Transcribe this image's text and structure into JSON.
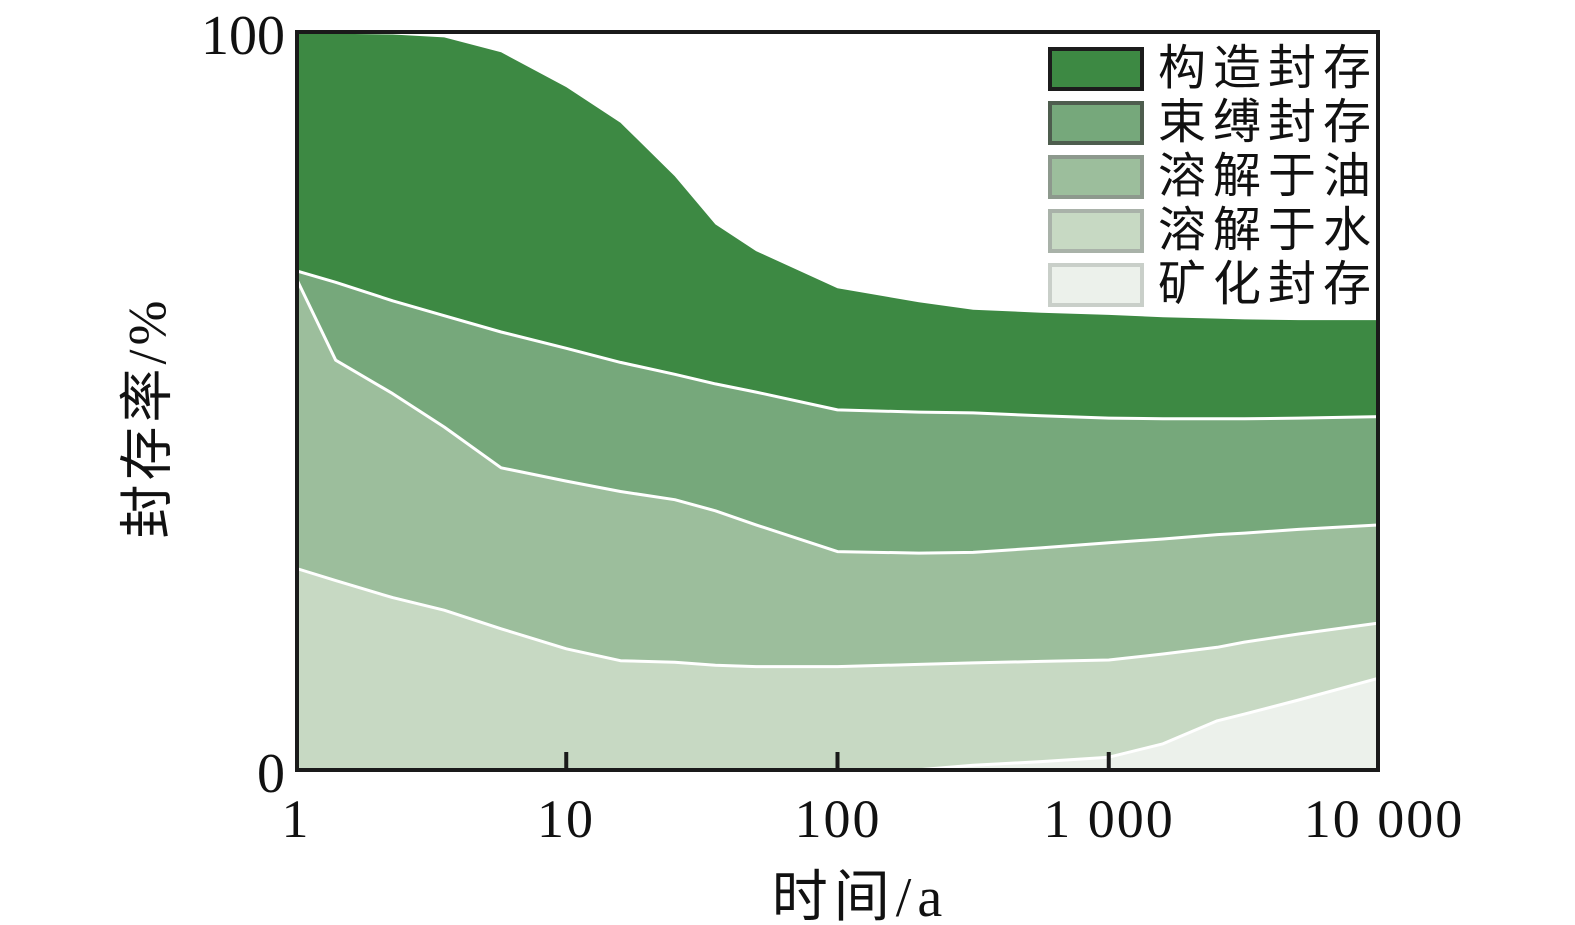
{
  "chart_data": {
    "type": "area",
    "variant": "stacked-area",
    "title": "",
    "x_axis": {
      "label": "时间/a",
      "scale": "log10",
      "range": [
        1,
        10000
      ],
      "ticks": [
        1,
        10,
        100,
        1000,
        10000
      ],
      "tick_labels": [
        "1",
        "10",
        "100",
        "1 000",
        "10 000"
      ]
    },
    "y_axis": {
      "label": "封存率/%",
      "range": [
        0,
        100
      ],
      "ticks": [
        0,
        100
      ],
      "tick_labels": {
        "min": "0",
        "max": "100"
      }
    },
    "legend_position": "top-right-inside",
    "grid": false,
    "x_log10": [
      0,
      0.15,
      0.36,
      0.55,
      0.76,
      1.0,
      1.2,
      1.4,
      1.55,
      1.7,
      2.0,
      2.3,
      2.5,
      2.75,
      3.0,
      3.2,
      3.4,
      3.5,
      3.7,
      4.0
    ],
    "series_note": "series listed top layer first; 'upper' is the cumulative stacked top boundary in percent sampled at x_log10",
    "series": [
      {
        "key": "structural",
        "name": "构造封存",
        "color": "#3d8943",
        "swatch_border": "#1c1c1c",
        "upper": [
          99.6,
          99.5,
          99.4,
          99.0,
          97.0,
          92.3,
          87.5,
          80.3,
          73.8,
          70.2,
          65.2,
          63.3,
          62.3,
          61.9,
          61.6,
          61.3,
          61.1,
          61.0,
          60.9,
          60.9
        ]
      },
      {
        "key": "residual",
        "name": "束缚封存",
        "color": "#76a87b",
        "swatch_border": "#4e5d4e",
        "upper": [
          67.6,
          66.0,
          63.5,
          61.5,
          59.3,
          57.1,
          55.2,
          53.6,
          52.3,
          51.2,
          48.8,
          48.5,
          48.4,
          48.0,
          47.7,
          47.6,
          47.6,
          47.6,
          47.7,
          47.9
        ]
      },
      {
        "key": "oil-dissolved",
        "name": "溶解于油",
        "color": "#9cbe9c",
        "swatch_border": "#8d998d",
        "upper": [
          66.9,
          55.5,
          51.0,
          46.5,
          41.0,
          39.2,
          37.8,
          36.7,
          35.2,
          33.3,
          29.7,
          29.5,
          29.6,
          30.2,
          30.9,
          31.4,
          32.0,
          32.2,
          32.7,
          33.3
        ]
      },
      {
        "key": "water-dissolved",
        "name": "溶解于水",
        "color": "#c7d9c3",
        "swatch_border": "#a9b2a9",
        "upper": [
          27.5,
          25.8,
          23.5,
          21.8,
          19.3,
          16.6,
          15.0,
          14.8,
          14.4,
          14.2,
          14.2,
          14.5,
          14.7,
          14.9,
          15.1,
          15.9,
          16.8,
          17.5,
          18.6,
          20.1
        ]
      },
      {
        "key": "mineral",
        "name": "矿化封存",
        "color": "#ecf1eb",
        "swatch_border": "#c9cfc9",
        "upper": [
          0,
          0,
          0,
          0,
          0,
          0,
          0,
          0,
          0,
          0,
          0,
          0.3,
          0.9,
          1.4,
          2.0,
          3.8,
          6.9,
          7.8,
          9.7,
          12.7
        ]
      }
    ],
    "boundary_line_color": "#ffffff",
    "axis_color": "#1a1a1a",
    "background_color": "#ffffff"
  }
}
